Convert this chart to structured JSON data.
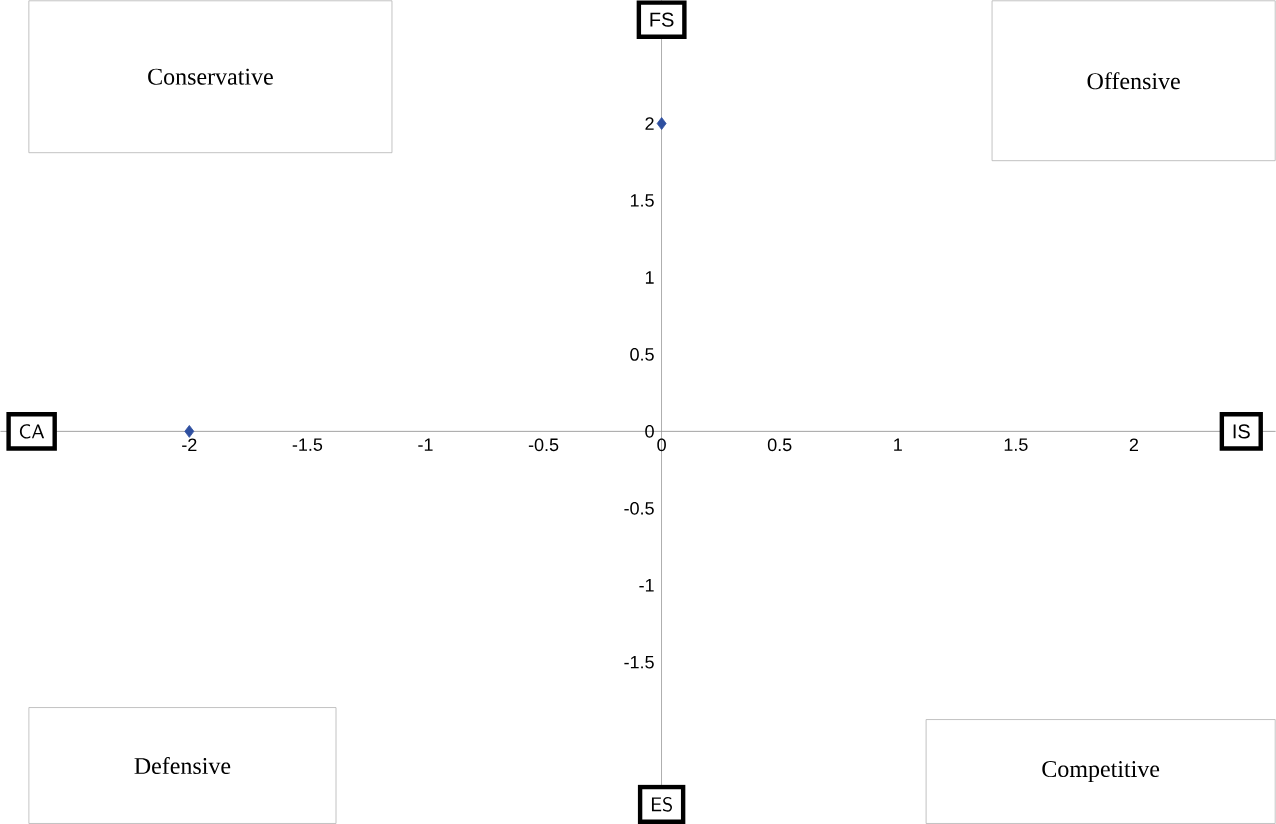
{
  "chart_data": {
    "type": "scatter",
    "xlabel": "IS",
    "ylabel": "FS",
    "annotations": [
      "CA",
      "ES",
      "Conservative",
      "Offensive",
      "Defensive",
      "Competitive"
    ],
    "x": [
      0,
      -2
    ],
    "values": [
      2,
      0
    ],
    "color": "#2e4fa0",
    "marker": "diamond",
    "grid": false,
    "xlim": [
      -2.8,
      2.6
    ],
    "ylim": [
      -2.55,
      2.8
    ],
    "xticks": [
      -2,
      -1.5,
      -1,
      -0.5,
      0,
      0.5,
      1,
      1.5,
      2
    ],
    "yticks": [
      -1.5,
      -1,
      -0.5,
      0,
      0.5,
      1,
      1.5,
      2
    ]
  }
}
